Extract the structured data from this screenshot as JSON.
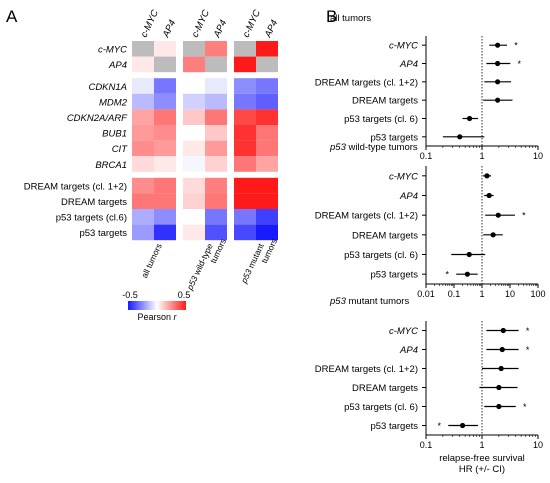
{
  "panels": {
    "a": "A",
    "b": "B"
  },
  "heatmap": {
    "group_labels": [
      "all tumors",
      "p53 wild-type tumors",
      "p53 mutant tumors"
    ],
    "group_labels_parts": [
      [
        {
          "t": "all tumors",
          "i": false
        }
      ],
      [
        {
          "t": "p53",
          "i": true
        },
        {
          "t": " wild-type",
          "i": false
        },
        {
          "t": "tumors",
          "i": false,
          "nl": true
        }
      ],
      [
        {
          "t": "p53",
          "i": true
        },
        {
          "t": " mutant",
          "i": false
        },
        {
          "t": "tumors",
          "i": false,
          "nl": true
        }
      ]
    ],
    "col_labels": [
      "c-MYC",
      "AP4"
    ],
    "rows": [
      {
        "label": "c-MYC",
        "italic": true
      },
      {
        "label": "AP4",
        "italic": true
      },
      {
        "label": "CDKN1A",
        "italic": true
      },
      {
        "label": "MDM2",
        "italic": true
      },
      {
        "label": "CDKN2A/ARF",
        "italic": true
      },
      {
        "label": "BUB1",
        "italic": true
      },
      {
        "label": "CIT",
        "italic": true
      },
      {
        "label": "BRCA1",
        "italic": true
      },
      {
        "label": "DREAM targets (cl. 1+2)",
        "italic": false
      },
      {
        "label": "DREAM targets",
        "italic": false
      },
      {
        "label": "p53 targets (cl.6)",
        "italic": false
      },
      {
        "label": "p53 targets",
        "italic": false
      }
    ],
    "values": [
      [
        null,
        0.05,
        null,
        0.28,
        null,
        0.55
      ],
      [
        0.05,
        null,
        0.28,
        null,
        0.55,
        null
      ],
      [
        -0.05,
        -0.3,
        0.0,
        -0.05,
        -0.25,
        -0.3
      ],
      [
        -0.15,
        -0.25,
        -0.1,
        -0.15,
        -0.3,
        -0.35
      ],
      [
        0.2,
        0.3,
        0.12,
        0.3,
        0.4,
        0.45
      ],
      [
        0.22,
        0.25,
        0.0,
        0.12,
        0.45,
        0.3
      ],
      [
        0.25,
        0.22,
        0.05,
        0.22,
        0.45,
        0.3
      ],
      [
        0.08,
        0.05,
        -0.02,
        0.1,
        0.3,
        0.2
      ],
      [
        0.25,
        0.3,
        0.08,
        0.28,
        0.55,
        0.5
      ],
      [
        0.3,
        0.3,
        0.1,
        0.3,
        0.55,
        0.5
      ],
      [
        -0.18,
        -0.25,
        0.0,
        -0.3,
        -0.3,
        -0.42
      ],
      [
        -0.22,
        -0.45,
        0.05,
        -0.38,
        -0.4,
        -0.55
      ]
    ],
    "null_color": "#bcbcbc",
    "scale": {
      "min": -0.5,
      "max": 0.5,
      "min_label": "-0.5",
      "max_label": "0.5",
      "label_prefix": "Pearson ",
      "label_var": "r",
      "low_color": "#1a1aff",
      "mid_color": "#ffffff",
      "high_color": "#ff1a1a"
    }
  },
  "chart_data": [
    {
      "type": "scatter",
      "title": "all tumors",
      "title_parts": [
        {
          "t": "all tumors",
          "i": false
        }
      ],
      "xscale": "log",
      "xlim": [
        0.1,
        10
      ],
      "ticks": [
        0.1,
        1,
        10
      ],
      "tick_labels": [
        "0.1",
        "1",
        "10"
      ],
      "reference_line": 1,
      "rows": [
        {
          "label": "c-MYC",
          "italic": true,
          "hr": 1.9,
          "lo": 1.35,
          "hi": 2.8,
          "star": "*"
        },
        {
          "label": "AP4",
          "italic": true,
          "hr": 1.9,
          "lo": 1.2,
          "hi": 3.2,
          "star": "*"
        },
        {
          "label": "DREAM targets (cl. 1+2)",
          "italic": false,
          "hr": 1.9,
          "lo": 1.1,
          "hi": 3.3,
          "star": ""
        },
        {
          "label": "DREAM targets",
          "italic": false,
          "hr": 1.9,
          "lo": 1.05,
          "hi": 3.5,
          "star": ""
        },
        {
          "label": "p53 targets (cl. 6)",
          "italic": false,
          "hr": 0.6,
          "lo": 0.45,
          "hi": 0.85,
          "star": ""
        },
        {
          "label": "p53 targets",
          "italic": false,
          "hr": 0.4,
          "lo": 0.2,
          "hi": 1.1,
          "star": ""
        }
      ]
    },
    {
      "type": "scatter",
      "title": "p53 wild-type tumors",
      "title_parts": [
        {
          "t": "p53",
          "i": true
        },
        {
          "t": " wild-type tumors",
          "i": false
        }
      ],
      "xscale": "log",
      "xlim": [
        0.01,
        100
      ],
      "ticks": [
        0.01,
        0.1,
        1,
        10,
        100
      ],
      "tick_labels": [
        "0.01",
        "0.1",
        "1",
        "10",
        "100"
      ],
      "reference_line": 1,
      "rows": [
        {
          "label": "c-MYC",
          "italic": true,
          "hr": 1.5,
          "lo": 1.1,
          "hi": 2.1,
          "star": ""
        },
        {
          "label": "AP4",
          "italic": true,
          "hr": 1.8,
          "lo": 1.2,
          "hi": 2.6,
          "star": ""
        },
        {
          "label": "DREAM targets (cl. 1+2)",
          "italic": false,
          "hr": 3.8,
          "lo": 1.3,
          "hi": 15,
          "star": "*"
        },
        {
          "label": "DREAM targets",
          "italic": false,
          "hr": 2.5,
          "lo": 1.1,
          "hi": 5.5,
          "star": ""
        },
        {
          "label": "p53 targets (cl. 6)",
          "italic": false,
          "hr": 0.35,
          "lo": 0.08,
          "hi": 1.3,
          "star": ""
        },
        {
          "label": "p53 targets",
          "italic": false,
          "hr": 0.3,
          "lo": 0.12,
          "hi": 0.7,
          "star": "*"
        }
      ]
    },
    {
      "type": "scatter",
      "title": "p53 mutant tumors",
      "title_parts": [
        {
          "t": "p53",
          "i": true
        },
        {
          "t": " mutant tumors",
          "i": false
        }
      ],
      "xscale": "log",
      "xlim": [
        0.1,
        10
      ],
      "ticks": [
        0.1,
        1,
        10
      ],
      "tick_labels": [
        "0.1",
        "1",
        "10"
      ],
      "reference_line": 1,
      "xlabel_lines": [
        "relapse-free survival",
        "HR (+/- CI)"
      ],
      "rows": [
        {
          "label": "c-MYC",
          "italic": true,
          "hr": 2.4,
          "lo": 1.2,
          "hi": 4.5,
          "star": "*"
        },
        {
          "label": "AP4",
          "italic": true,
          "hr": 2.3,
          "lo": 1.2,
          "hi": 4.5,
          "star": "*"
        },
        {
          "label": "DREAM targets (cl. 1+2)",
          "italic": false,
          "hr": 2.2,
          "lo": 1.0,
          "hi": 4.5,
          "star": ""
        },
        {
          "label": "DREAM targets",
          "italic": false,
          "hr": 2.0,
          "lo": 0.9,
          "hi": 4.3,
          "star": ""
        },
        {
          "label": "p53 targets (cl. 6)",
          "italic": false,
          "hr": 2.0,
          "lo": 1.1,
          "hi": 4.0,
          "star": "*"
        },
        {
          "label": "p53 targets",
          "italic": false,
          "hr": 0.45,
          "lo": 0.25,
          "hi": 0.85,
          "star": "*"
        }
      ]
    }
  ]
}
